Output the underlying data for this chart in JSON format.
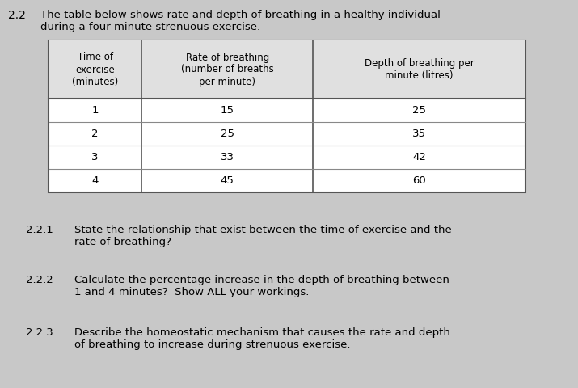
{
  "background_color": "#c8c8c8",
  "section_number": "2.2",
  "intro_line1": "The table below shows rate and depth of breathing in a healthy individual",
  "intro_line2": "during a four minute strenuous exercise.",
  "table_headers": [
    "Time of\nexercise\n(minutes)",
    "Rate of breathing\n(number of breaths\nper minute)",
    "Depth of breathing per\nminute (litres)"
  ],
  "table_data": [
    [
      "1",
      "15",
      "25"
    ],
    [
      "2",
      "25",
      "35"
    ],
    [
      "3",
      "33",
      "42"
    ],
    [
      "4",
      "45",
      "60"
    ]
  ],
  "questions": [
    {
      "number": "2.2.1",
      "text_line1": "State the relationship that exist between the time of exercise and the",
      "text_line2": "rate of breathing?"
    },
    {
      "number": "2.2.2",
      "text_line1": "Calculate the percentage increase in the depth of breathing between",
      "text_line2": "1 and 4 minutes?  Show ALL your workings."
    },
    {
      "number": "2.2.3",
      "text_line1": "Describe the homeostatic mechanism that causes the rate and depth",
      "text_line2": "of breathing to increase during strenuous exercise."
    }
  ],
  "table_header_bg": "#e8e8e8",
  "table_data_bg": "#f0f0f0",
  "font_size_intro": 9.5,
  "font_size_table_header": 8.5,
  "font_size_table_data": 9.5,
  "font_size_questions": 9.5,
  "font_size_section": 10
}
